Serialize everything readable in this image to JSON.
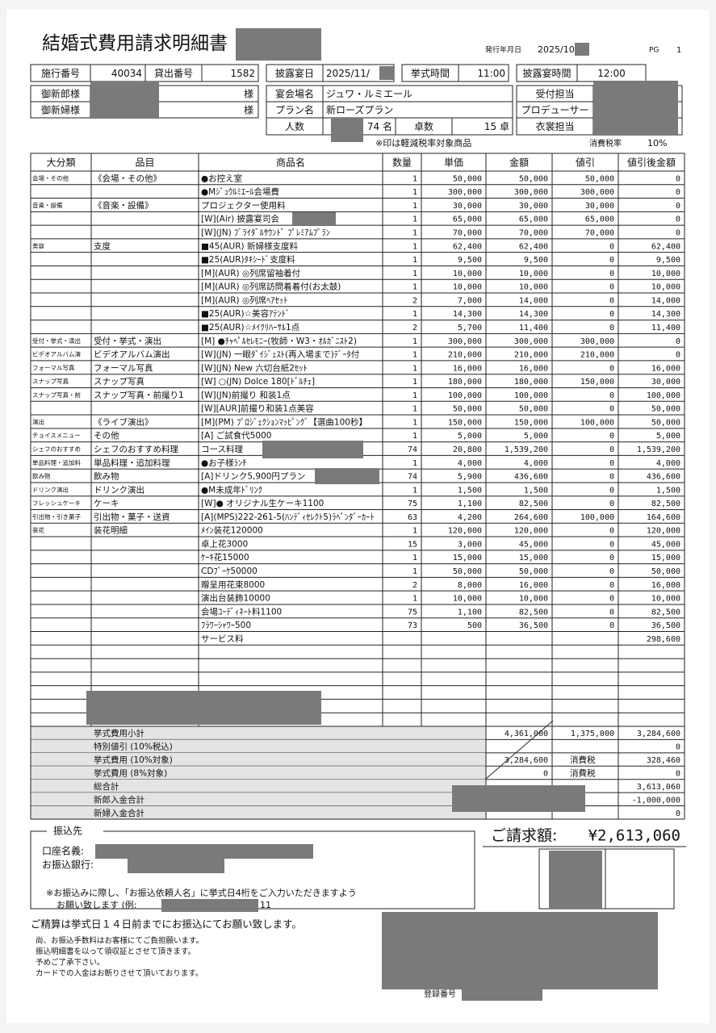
{
  "header": {
    "title": "結婚式費用請求明細書",
    "issue_date_label": "発行年月日",
    "issue_date": "2025/10/",
    "page_label": "PG",
    "page": "1"
  },
  "fields": [
    {
      "label": "施行番号",
      "value": "40034"
    },
    {
      "label": "貸出番号",
      "value": "1582"
    },
    {
      "label": "披露宴日",
      "value": "2025/11/"
    },
    {
      "label": "挙式時間",
      "value": "11:00"
    },
    {
      "label": "披露宴時間",
      "value": "12:00"
    },
    {
      "label": "御新郎様",
      "suffix": "様"
    },
    {
      "label": "宴会場名",
      "value": "ジュワ・ルミエール"
    },
    {
      "label": "受付担当"
    },
    {
      "label": "御新婦様",
      "suffix": "様"
    },
    {
      "label": "プラン名",
      "value": "新ローズプラン"
    },
    {
      "label": "プロデューサー"
    },
    {
      "label": "人数",
      "value": "74 名"
    },
    {
      "label": "卓数",
      "value": "15 卓"
    },
    {
      "label": "衣裳担当"
    }
  ],
  "note": "※印は軽減税率対象商品",
  "tax_rate_label": "消費税率",
  "tax_rate": "10%",
  "table": {
    "columns": [
      "大分類",
      "品目",
      "商品名",
      "数量",
      "単価",
      "金額",
      "値引",
      "値引後金額"
    ],
    "rows": [
      {
        "category": "会場・その他",
        "item": "《会場・その他》",
        "name": "●お控え室",
        "qty": "1",
        "unit_price": "50,000",
        "amount": "50,000",
        "discount": "50,000",
        "net": "0"
      },
      {
        "name": "●Mｼﾞｭｳﾙﾐｴｰﾙ会場費",
        "qty": "1",
        "unit_price": "300,000",
        "amount": "300,000",
        "discount": "300,000",
        "net": "0"
      },
      {
        "category": "音楽・設備",
        "item": "《音楽・設備》",
        "name": "プロジェクター使用料",
        "qty": "1",
        "unit_price": "30,000",
        "amount": "30,000",
        "discount": "30,000",
        "net": "0"
      },
      {
        "name": "[W](Air) 披露宴司会",
        "qty": "1",
        "unit_price": "65,000",
        "amount": "65,000",
        "discount": "65,000",
        "net": "0"
      },
      {
        "name": "[W](JN) ﾌﾞﾗｲﾀﾞﾙｻｳﾝﾄﾞ ﾌﾟﾚﾐｱﾑﾌﾟﾗﾝ",
        "qty": "1",
        "unit_price": "70,000",
        "amount": "70,000",
        "discount": "70,000",
        "net": "0"
      },
      {
        "category": "美容",
        "item": "支度",
        "name": "■45(AUR) 新婦様支度料",
        "qty": "1",
        "unit_price": "62,400",
        "amount": "62,400",
        "discount": "0",
        "net": "62,400"
      },
      {
        "name": "■25(AUR)ﾀｷｼｰﾄﾞ支度料",
        "qty": "1",
        "unit_price": "9,500",
        "amount": "9,500",
        "discount": "0",
        "net": "9,500"
      },
      {
        "name": "[M](AUR) ◎列席留袖着付",
        "qty": "1",
        "unit_price": "10,000",
        "amount": "10,000",
        "discount": "0",
        "net": "10,000"
      },
      {
        "name": "[M](AUR) ◎列席訪問着着付(お太鼓)",
        "qty": "1",
        "unit_price": "10,000",
        "amount": "10,000",
        "discount": "0",
        "net": "10,000"
      },
      {
        "name": "[M](AUR) ◎列席ﾍｱｾｯﾄ",
        "qty": "2",
        "unit_price": "7,000",
        "amount": "14,000",
        "discount": "0",
        "net": "14,000"
      },
      {
        "name": "■25(AUR)☆美容ｱﾃﾝﾄﾞ",
        "qty": "1",
        "unit_price": "14,300",
        "amount": "14,300",
        "discount": "0",
        "net": "14,300"
      },
      {
        "name": "■25(AUR)☆ﾒｲｸﾘﾊｰｻﾙ1点",
        "qty": "2",
        "unit_price": "5,700",
        "amount": "11,400",
        "discount": "0",
        "net": "11,400"
      },
      {
        "category": "受付・挙式・演出",
        "item": "受付・挙式・演出",
        "name": "[M] ●ﾁｬﾍﾟﾙｾﾚﾓﾆｰ(牧師・W3・ｵﾙｶﾞﾆｽﾄ2)",
        "qty": "1",
        "unit_price": "300,000",
        "amount": "300,000",
        "discount": "300,000",
        "net": "0"
      },
      {
        "category": "ビデオアルバム演",
        "item": "ビデオアルバム演出",
        "name": "[W](JN) 一眼ﾀﾞｲｼﾞｪｽﾄ(再入場まで)ﾃﾞｰﾀ付",
        "qty": "1",
        "unit_price": "210,000",
        "amount": "210,000",
        "discount": "210,000",
        "net": "0"
      },
      {
        "category": "フォーマル写真",
        "item": "フォーマル写真",
        "name": "[W](JN) New 六切台紙2ｾｯﾄ",
        "qty": "1",
        "unit_price": "16,000",
        "amount": "16,000",
        "discount": "0",
        "net": "16,000"
      },
      {
        "category": "スナップ写真",
        "item": "スナップ写真",
        "name": "[W] ○(JN) Dolce 180[ﾄﾞﾙﾁｪ]",
        "qty": "1",
        "unit_price": "180,000",
        "amount": "180,000",
        "discount": "150,000",
        "net": "30,000"
      },
      {
        "category": "スナップ写真・前",
        "item": "スナップ写真・前撮り1",
        "name": "[W](JN)前撮り 和装1点",
        "qty": "1",
        "unit_price": "100,000",
        "amount": "100,000",
        "discount": "0",
        "net": "100,000"
      },
      {
        "name": "[W][AUR]前撮り和装1点美容",
        "qty": "1",
        "unit_price": "50,000",
        "amount": "50,000",
        "discount": "0",
        "net": "50,000"
      },
      {
        "category": "演出",
        "item": "《ライブ演出》",
        "name": "[M](PM) ﾌﾟﾛｼﾞｪｸｼｮﾝﾏｯﾋﾟﾝｸﾞ【選曲100秒】",
        "qty": "1",
        "unit_price": "150,000",
        "amount": "150,000",
        "discount": "100,000",
        "net": "50,000"
      },
      {
        "category": "チョイスメニュー",
        "item": "その他",
        "name": "[A] ご試食代5000",
        "qty": "1",
        "unit_price": "5,000",
        "amount": "5,000",
        "discount": "0",
        "net": "5,000"
      },
      {
        "category": "シェフのおすすめ",
        "item": "シェフのおすすめ料理",
        "name": "コース料理",
        "qty": "74",
        "unit_price": "20,800",
        "amount": "1,539,200",
        "discount": "0",
        "net": "1,539,200"
      },
      {
        "category": "単品料理・追加料",
        "item": "単品料理・追加料理",
        "name": "●お子様ﾗﾝﾁ",
        "qty": "1",
        "unit_price": "4,000",
        "amount": "4,000",
        "discount": "0",
        "net": "4,000"
      },
      {
        "category": "飲み物",
        "item": "飲み物",
        "name": "[A]ドリンク5,900円プラン",
        "qty": "74",
        "unit_price": "5,900",
        "amount": "436,600",
        "discount": "0",
        "net": "436,600"
      },
      {
        "category": "ドリンク演出",
        "item": "ドリンク演出",
        "name": "●M未成年ﾄﾞﾘﾝｸ",
        "qty": "1",
        "unit_price": "1,500",
        "amount": "1,500",
        "discount": "0",
        "net": "1,500"
      },
      {
        "category": "フレッシュケーキ",
        "item": "ケーキ",
        "name": "[W]● オリジナル生ケーキ1100",
        "qty": "75",
        "unit_price": "1,100",
        "amount": "82,500",
        "discount": "0",
        "net": "82,500"
      },
      {
        "category": "引出物・引き菓子",
        "item": "引出物・菓子・送資",
        "name": "[A](MPS)222-261-5(ﾊﾝﾃﾞｨｾﾚｸﾄ5)ﾗﾍﾞﾝﾀﾞｰｶｰﾄ",
        "qty": "63",
        "unit_price": "4,200",
        "amount": "264,600",
        "discount": "100,000",
        "net": "164,600"
      },
      {
        "category": "装花",
        "item": "装花明細",
        "name": "ﾒｲﾝ装花120000",
        "qty": "1",
        "unit_price": "120,000",
        "amount": "120,000",
        "discount": "0",
        "net": "120,000"
      },
      {
        "name": "卓上花3000",
        "qty": "15",
        "unit_price": "3,000",
        "amount": "45,000",
        "discount": "0",
        "net": "45,000"
      },
      {
        "name": "ｹｰｷ花15000",
        "qty": "1",
        "unit_price": "15,000",
        "amount": "15,000",
        "discount": "0",
        "net": "15,000"
      },
      {
        "name": "CDﾌﾞｰｹ50000",
        "qty": "1",
        "unit_price": "50,000",
        "amount": "50,000",
        "discount": "0",
        "net": "50,000"
      },
      {
        "name": "贈呈用花束8000",
        "qty": "2",
        "unit_price": "8,000",
        "amount": "16,000",
        "discount": "0",
        "net": "16,000"
      },
      {
        "name": "演出台装飾10000",
        "qty": "1",
        "unit_price": "10,000",
        "amount": "10,000",
        "discount": "0",
        "net": "10,000"
      },
      {
        "name": "会場ｺｰﾃﾞｨﾈｰﾄ料1100",
        "qty": "75",
        "unit_price": "1,100",
        "amount": "82,500",
        "discount": "0",
        "net": "82,500"
      },
      {
        "name": "ﾌﾗﾜｰｼｬﾜｰ500",
        "qty": "73",
        "unit_price": "500",
        "amount": "36,500",
        "discount": "0",
        "net": "36,500"
      },
      {
        "name": "サービス料",
        "net": "298,600"
      }
    ]
  },
  "summary": [
    {
      "label": "挙式費用小計",
      "amount": "4,361,000",
      "discount": "1,375,000",
      "net": "3,284,600"
    },
    {
      "label": "特別値引 (10%税込)",
      "net": "0"
    },
    {
      "label": "挙式費用 (10%対象)",
      "amount": "3,284,600",
      "tax_label": "消費税",
      "net": "328,460"
    },
    {
      "label": "挙式費用 (8%対象)",
      "amount": "0",
      "tax_label": "消費税",
      "net": "0"
    },
    {
      "label": "総合計",
      "net": "3,613,060"
    },
    {
      "label": "新郎入金合計",
      "net": "-1,000,000"
    },
    {
      "label": "新婦入金合計",
      "net": "0"
    }
  ],
  "transfer": {
    "title": "振込先",
    "account_label": "口座名義:",
    "bank_label": "お振込銀行:",
    "note_line1": "※お振込みに際し、「お振込依頼人名」に挙式日4桁をご入力いただきますよう",
    "note_line2": "お願い致します (例:",
    "example": "11"
  },
  "billing": {
    "label": "ご請求額:",
    "amount": "¥2,613,060"
  },
  "deadline": "ご精算は挙式日１４日前までにお振込にてお願い致します。",
  "notes": [
    "尚、お振込手数料はお客様にてご負担願います。",
    "振込明細書を以って領収証とさせて頂きます。",
    "予めご了承下さい。",
    "カードでの入金はお断りさせて頂いております。"
  ],
  "registration_label": "登録番号"
}
